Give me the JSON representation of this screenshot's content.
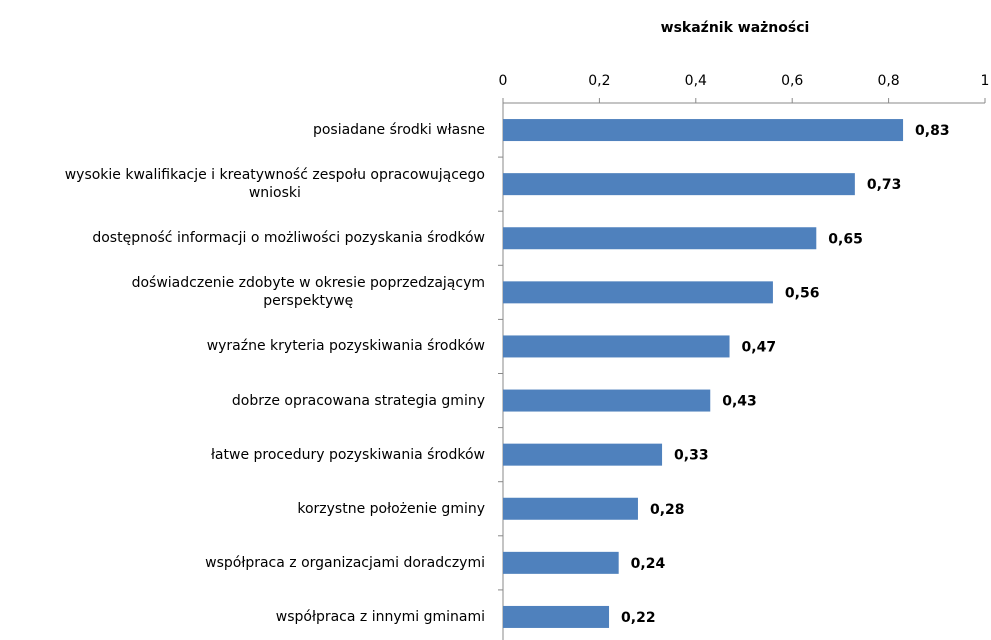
{
  "chart_data": {
    "type": "bar",
    "orientation": "horizontal",
    "title": "wskaźnik ważności",
    "categories": [
      "posiadane środki własne",
      "wysokie kwalifikacje  i kreatywność zespołu opracowującego\nwnioski",
      "dostępność informacji o możliwości pozyskania środków",
      "doświadczenie zdobyte w okresie poprzedzającym\nperspektywę",
      "wyraźne kryteria pozyskiwania środków",
      "dobrze opracowana strategia gminy",
      "łatwe procedury pozyskiwania środków",
      "korzystne położenie gminy",
      "współpraca z organizacjami  doradczymi",
      "współpraca z innymi gminami"
    ],
    "values": [
      0.83,
      0.73,
      0.65,
      0.56,
      0.47,
      0.43,
      0.33,
      0.28,
      0.24,
      0.22
    ],
    "value_labels": [
      "0,83",
      "0,73",
      "0,65",
      "0,56",
      "0,47",
      "0,43",
      "0,33",
      "0,28",
      "0,24",
      "0,22"
    ],
    "color": "#4f81bd",
    "xlim": [
      0,
      1
    ],
    "xticks": [
      0,
      {
        "value": 0.2,
        "label": "0,2"
      },
      {
        "value": 0.4,
        "label": "0,4"
      },
      {
        "value": 0.6,
        "label": "0,6"
      },
      {
        "value": 0.8,
        "label": "0,8"
      },
      1
    ]
  }
}
